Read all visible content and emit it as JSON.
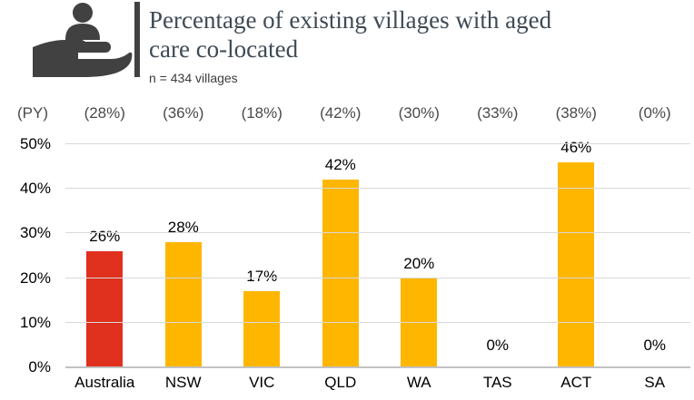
{
  "header": {
    "title_line1": "Percentage of existing villages with aged",
    "title_line2": "care co-located",
    "sample_note": "n = 434 villages",
    "icon": "hand-holding-person-icon"
  },
  "colors": {
    "highlight_bar": "#E0301E",
    "default_bar": "#FFB600",
    "title_text": "#3E4A55",
    "icon": "#414141",
    "gridline": "#D9D9D9"
  },
  "chart_data": {
    "type": "bar",
    "title": "Percentage of existing villages with aged care co-located",
    "subtitle": "n = 434 villages",
    "categories": [
      "Australia",
      "NSW",
      "VIC",
      "QLD",
      "WA",
      "TAS",
      "ACT",
      "SA"
    ],
    "values": [
      26,
      28,
      17,
      42,
      20,
      0,
      46,
      0
    ],
    "value_labels": [
      "26%",
      "28%",
      "17%",
      "42%",
      "20%",
      "0%",
      "46%",
      "0%"
    ],
    "prior_year_header": "(PY)",
    "prior_year_labels": [
      "(28%)",
      "(36%)",
      "(18%)",
      "(42%)",
      "(30%)",
      "(33%)",
      "(38%)",
      "(0%)"
    ],
    "prior_year_values": [
      28,
      36,
      18,
      42,
      30,
      33,
      38,
      0
    ],
    "y_ticks": [
      "50%",
      "40%",
      "30%",
      "20%",
      "10%",
      "0%"
    ],
    "ylim": [
      0,
      50
    ],
    "grid": true,
    "legend": "none",
    "bar_colors": [
      "#E0301E",
      "#FFB600",
      "#FFB600",
      "#FFB600",
      "#FFB600",
      "#FFB600",
      "#FFB600",
      "#FFB600"
    ],
    "highlight_category": "Australia"
  }
}
